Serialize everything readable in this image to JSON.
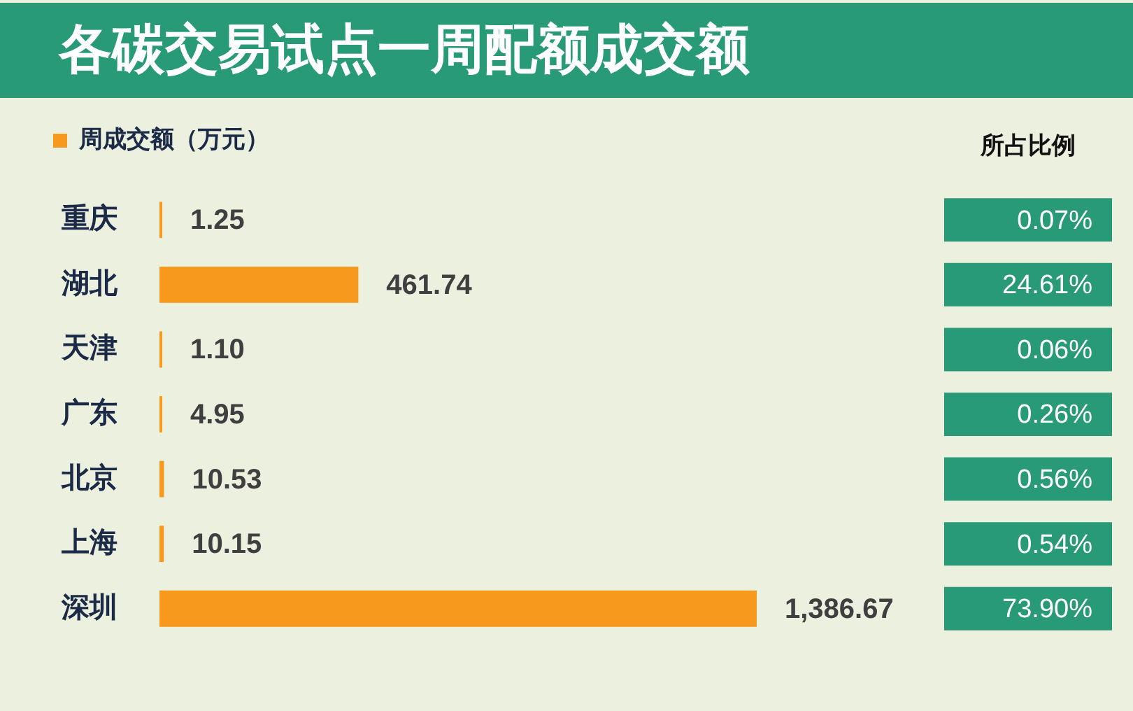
{
  "chart_data": {
    "type": "bar",
    "orientation": "horizontal",
    "title": "各碳交易试点一周配额成交额",
    "categories": [
      "重庆",
      "湖北",
      "天津",
      "广东",
      "北京",
      "上海",
      "深圳"
    ],
    "series": [
      {
        "name": "周成交额（万元）",
        "color": "#f7991c",
        "values": [
          1.25,
          461.74,
          1.1,
          4.95,
          10.53,
          10.15,
          1386.67
        ],
        "value_labels": [
          "1.25",
          "461.74",
          "1.10",
          "4.95",
          "10.53",
          "10.15",
          "1,386.67"
        ]
      }
    ],
    "legend": "top left",
    "grid": false,
    "tick_labels": "y",
    "annotations": [
      "所占比例",
      "0.07%",
      "24.61%",
      "0.06%",
      "0.26%",
      "0.56%",
      "0.54%",
      "73.90%"
    ]
  }
}
